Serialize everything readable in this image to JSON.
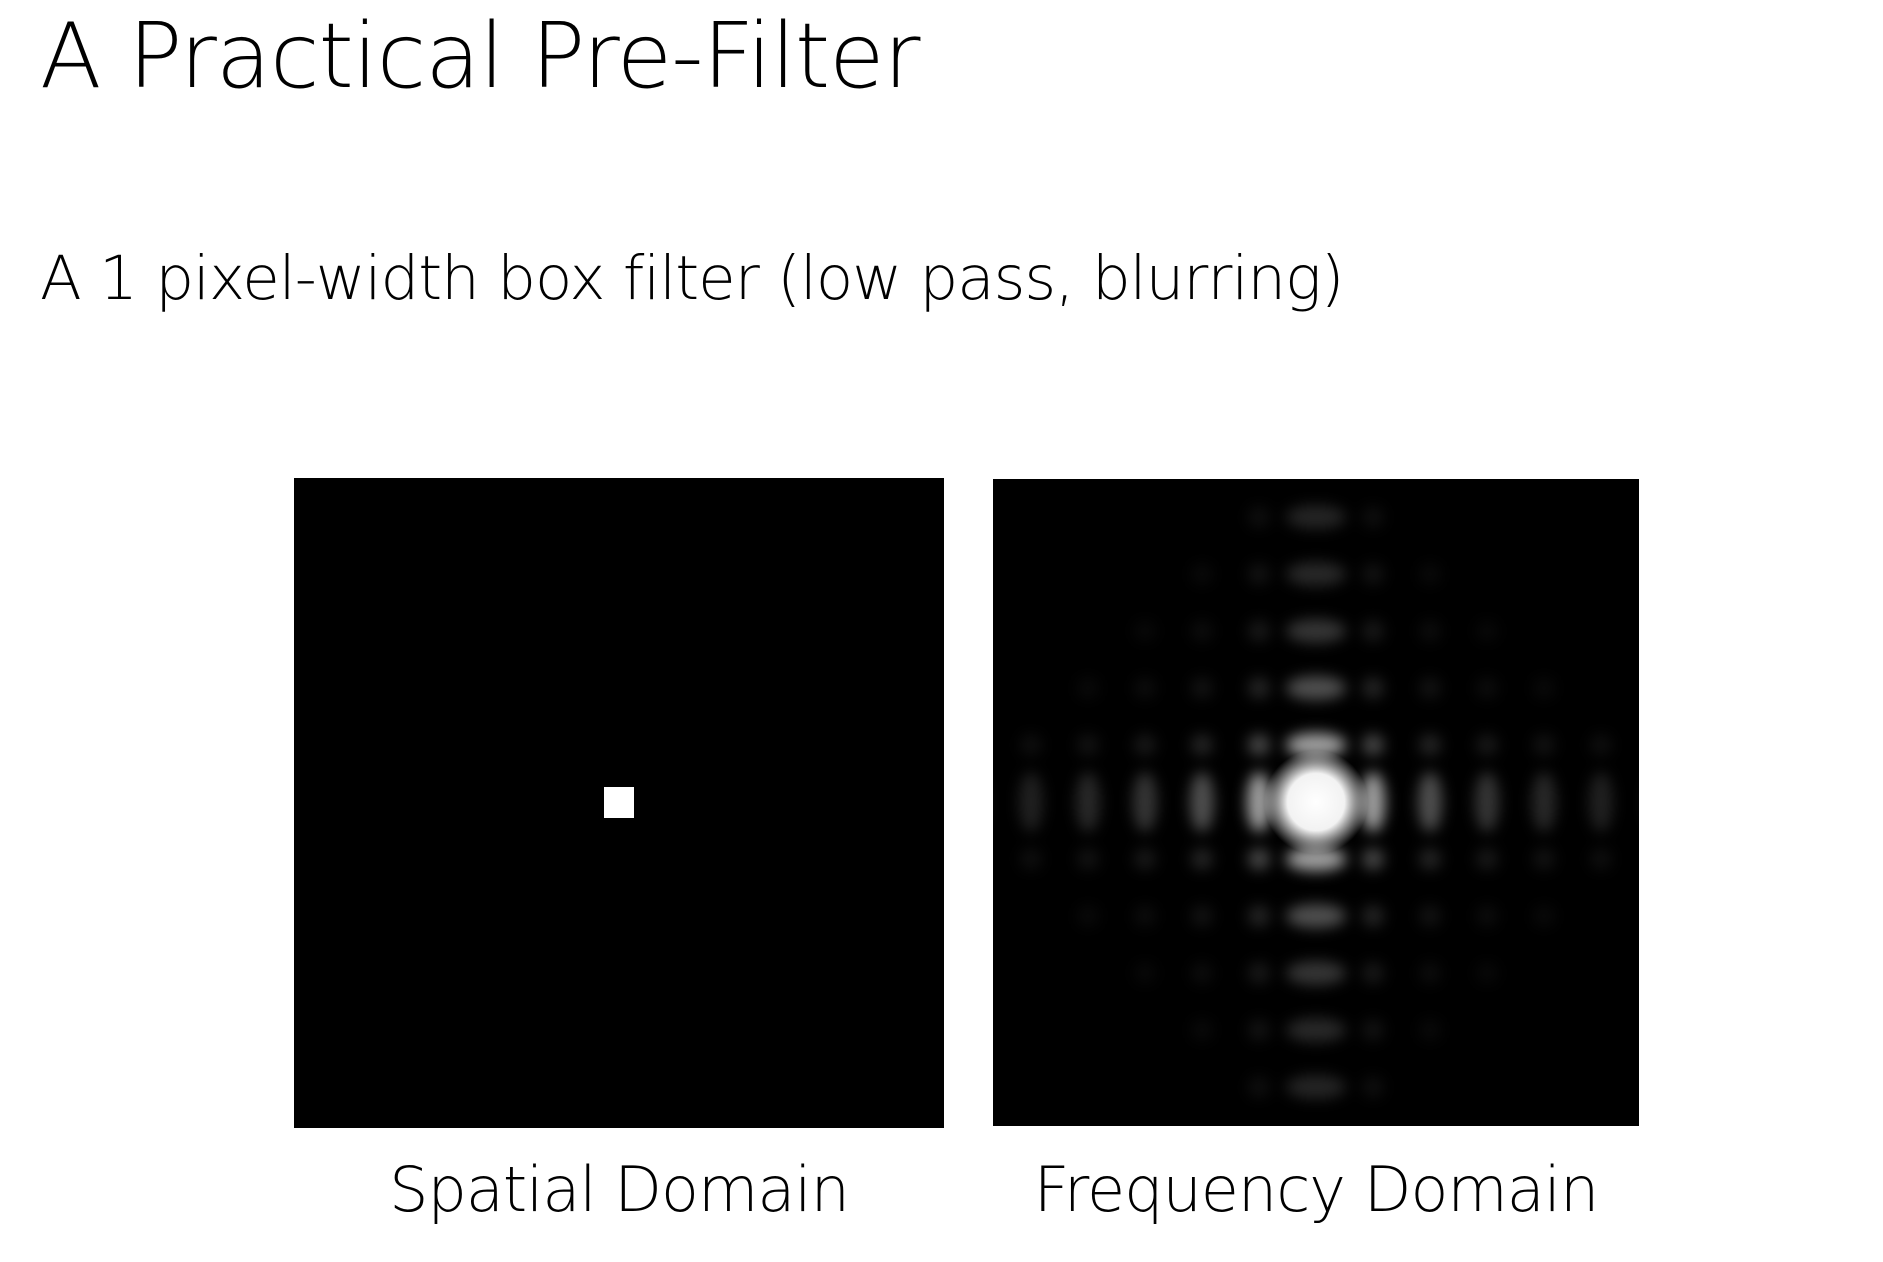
{
  "slide": {
    "title": "A Practical Pre-Filter",
    "subtitle": "A 1 pixel-width box filter (low pass, blurring)"
  },
  "panels": {
    "spatial": {
      "caption": "Spatial Domain"
    },
    "frequency": {
      "caption": "Frequency Domain"
    }
  }
}
